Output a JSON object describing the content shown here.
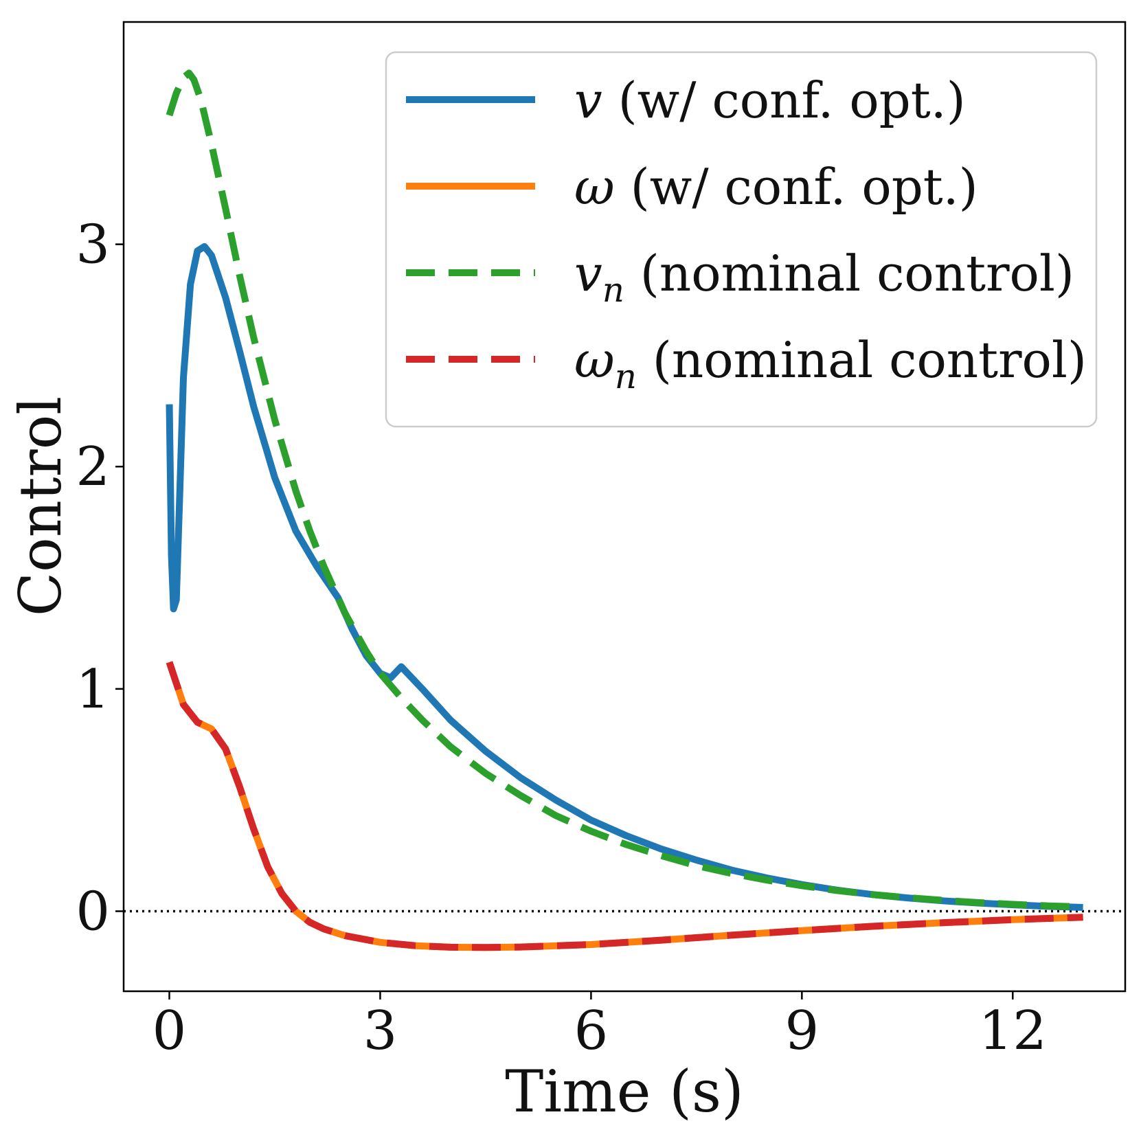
{
  "chart_data": {
    "type": "line",
    "title": "",
    "xlabel": "Time (s)",
    "ylabel": "Control",
    "xlim": [
      -0.65,
      13.6
    ],
    "ylim": [
      -0.36,
      4.0
    ],
    "xticks": [
      0,
      3,
      6,
      9,
      12
    ],
    "yticks": [
      0,
      1,
      2,
      3
    ],
    "grid": false,
    "legend_position": "top-right",
    "reference_line": {
      "y": 0,
      "style": "dotted",
      "color": "#000000"
    },
    "series": [
      {
        "name": "v (w/ conf. opt.)",
        "legend_symbol": "v",
        "legend_subscript": "",
        "legend_suffix": " (w/ conf. opt.)",
        "color": "#1f77b4",
        "style": "solid",
        "x": [
          0,
          0.03,
          0.06,
          0.1,
          0.15,
          0.2,
          0.3,
          0.4,
          0.5,
          0.6,
          0.8,
          1.0,
          1.2,
          1.5,
          1.8,
          2.1,
          2.4,
          2.6,
          2.8,
          3.0,
          3.15,
          3.3,
          3.6,
          4.0,
          4.5,
          5.0,
          5.5,
          6.0,
          6.5,
          7.0,
          7.5,
          8.0,
          8.5,
          9.0,
          9.5,
          10.0,
          10.5,
          11.0,
          11.5,
          12.0,
          12.5,
          13.0
        ],
        "y": [
          2.28,
          1.6,
          1.36,
          1.4,
          1.9,
          2.4,
          2.82,
          2.97,
          2.99,
          2.95,
          2.76,
          2.52,
          2.27,
          1.95,
          1.71,
          1.55,
          1.41,
          1.27,
          1.15,
          1.07,
          1.05,
          1.1,
          1.0,
          0.86,
          0.72,
          0.6,
          0.5,
          0.41,
          0.34,
          0.28,
          0.23,
          0.185,
          0.15,
          0.12,
          0.095,
          0.075,
          0.06,
          0.047,
          0.037,
          0.029,
          0.022,
          0.017
        ]
      },
      {
        "name": "ω (w/ conf. opt.)",
        "legend_symbol": "ω",
        "legend_subscript": "",
        "legend_suffix": " (w/ conf. opt.)",
        "color": "#ff7f0e",
        "style": "solid",
        "x": [
          0,
          0.2,
          0.4,
          0.6,
          0.8,
          1.0,
          1.2,
          1.4,
          1.6,
          1.8,
          2.0,
          2.2,
          2.5,
          3.0,
          3.5,
          4.0,
          4.5,
          5.0,
          6.0,
          7.0,
          8.0,
          9.0,
          10.0,
          11.0,
          12.0,
          13.0
        ],
        "y": [
          1.12,
          0.93,
          0.85,
          0.82,
          0.73,
          0.56,
          0.37,
          0.2,
          0.08,
          0.0,
          -0.05,
          -0.08,
          -0.11,
          -0.14,
          -0.155,
          -0.162,
          -0.163,
          -0.161,
          -0.15,
          -0.13,
          -0.108,
          -0.087,
          -0.068,
          -0.052,
          -0.038,
          -0.027
        ]
      },
      {
        "name": "v_n (nominal control)",
        "legend_symbol": "v",
        "legend_subscript": "n",
        "legend_suffix": " (nominal control)",
        "color": "#2ca02c",
        "style": "dashed",
        "x": [
          0,
          0.1,
          0.2,
          0.28,
          0.35,
          0.45,
          0.6,
          0.8,
          1.0,
          1.2,
          1.5,
          1.8,
          2.0,
          2.2,
          2.5,
          2.8,
          3.0,
          3.3,
          3.6,
          4.0,
          4.5,
          5.0,
          5.5,
          6.0,
          6.5,
          7.0,
          7.5,
          8.0,
          8.5,
          9.0,
          9.5,
          10.0,
          10.5,
          11.0,
          11.5,
          12.0,
          12.5,
          13.0
        ],
        "y": [
          3.58,
          3.68,
          3.75,
          3.77,
          3.74,
          3.65,
          3.45,
          3.16,
          2.86,
          2.58,
          2.21,
          1.89,
          1.71,
          1.55,
          1.34,
          1.17,
          1.07,
          0.96,
          0.86,
          0.74,
          0.62,
          0.52,
          0.43,
          0.36,
          0.3,
          0.25,
          0.205,
          0.17,
          0.14,
          0.115,
          0.093,
          0.075,
          0.061,
          0.049,
          0.039,
          0.031,
          0.024,
          0.019
        ]
      },
      {
        "name": "ω_n (nominal control)",
        "legend_symbol": "ω",
        "legend_subscript": "n",
        "legend_suffix": " (nominal control)",
        "color": "#d62728",
        "style": "dashed",
        "x": [
          0,
          0.2,
          0.4,
          0.6,
          0.8,
          1.0,
          1.2,
          1.4,
          1.6,
          1.8,
          2.0,
          2.2,
          2.5,
          3.0,
          3.5,
          4.0,
          4.5,
          5.0,
          6.0,
          7.0,
          8.0,
          9.0,
          10.0,
          11.0,
          12.0,
          13.0
        ],
        "y": [
          1.12,
          0.93,
          0.85,
          0.82,
          0.73,
          0.56,
          0.37,
          0.2,
          0.08,
          0.0,
          -0.05,
          -0.08,
          -0.11,
          -0.14,
          -0.155,
          -0.162,
          -0.163,
          -0.161,
          -0.15,
          -0.13,
          -0.108,
          -0.087,
          -0.068,
          -0.052,
          -0.038,
          -0.027
        ]
      }
    ]
  }
}
